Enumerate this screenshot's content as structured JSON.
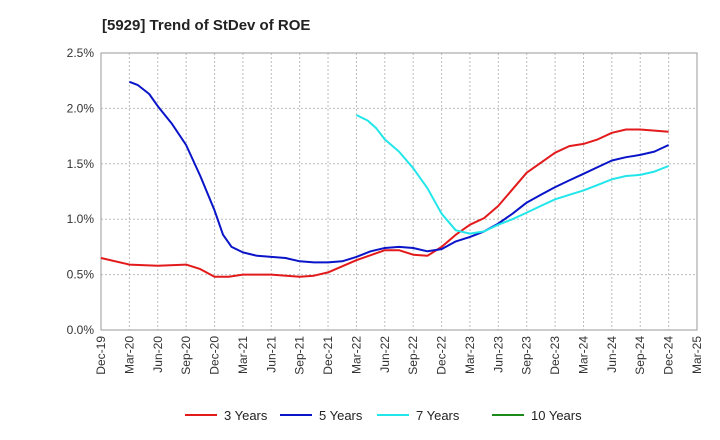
{
  "chart_data": {
    "type": "line",
    "title": "[5929]  Trend of StDev of ROE",
    "x_ticks": [
      "Dec-19",
      "Mar-20",
      "Jun-20",
      "Sep-20",
      "Dec-20",
      "Mar-21",
      "Jun-21",
      "Sep-21",
      "Dec-21",
      "Mar-22",
      "Jun-22",
      "Sep-22",
      "Dec-22",
      "Mar-23",
      "Jun-23",
      "Sep-23",
      "Dec-23",
      "Mar-24",
      "Jun-24",
      "Sep-24",
      "Dec-24",
      "Mar-25"
    ],
    "y_ticks": [
      "0.0%",
      "0.5%",
      "1.0%",
      "1.5%",
      "2.0%",
      "2.5%"
    ],
    "ylim": [
      0,
      2.5
    ],
    "grid": true,
    "legend_position": "bottom",
    "series": [
      {
        "name": "3 Years",
        "color": "#e31a1c",
        "points": [
          [
            0,
            0.65
          ],
          [
            1,
            0.59
          ],
          [
            2,
            0.58
          ],
          [
            3,
            0.59
          ],
          [
            3.5,
            0.55
          ],
          [
            4,
            0.48
          ],
          [
            4.5,
            0.48
          ],
          [
            5,
            0.5
          ],
          [
            6,
            0.5
          ],
          [
            7,
            0.48
          ],
          [
            7.5,
            0.49
          ],
          [
            8,
            0.52
          ],
          [
            9,
            0.63
          ],
          [
            10,
            0.72
          ],
          [
            10.5,
            0.72
          ],
          [
            11,
            0.68
          ],
          [
            11.5,
            0.67
          ],
          [
            12,
            0.75
          ],
          [
            12.5,
            0.86
          ],
          [
            13,
            0.95
          ],
          [
            13.5,
            1.01
          ],
          [
            14,
            1.12
          ],
          [
            14.5,
            1.27
          ],
          [
            15,
            1.42
          ],
          [
            15.5,
            1.51
          ],
          [
            16,
            1.6
          ],
          [
            16.5,
            1.66
          ],
          [
            17,
            1.68
          ],
          [
            17.5,
            1.72
          ],
          [
            18,
            1.78
          ],
          [
            18.5,
            1.81
          ],
          [
            19,
            1.81
          ],
          [
            19.5,
            1.8
          ],
          [
            20,
            1.79
          ]
        ]
      },
      {
        "name": "5 Years",
        "color": "#0a14c8",
        "points": [
          [
            1,
            2.24
          ],
          [
            1.3,
            2.21
          ],
          [
            1.7,
            2.13
          ],
          [
            2,
            2.02
          ],
          [
            2.5,
            1.86
          ],
          [
            3,
            1.67
          ],
          [
            3.5,
            1.39
          ],
          [
            4,
            1.08
          ],
          [
            4.3,
            0.86
          ],
          [
            4.6,
            0.75
          ],
          [
            5,
            0.7
          ],
          [
            5.5,
            0.67
          ],
          [
            6,
            0.66
          ],
          [
            6.5,
            0.65
          ],
          [
            7,
            0.62
          ],
          [
            7.5,
            0.61
          ],
          [
            8,
            0.61
          ],
          [
            8.5,
            0.62
          ],
          [
            9,
            0.66
          ],
          [
            9.5,
            0.71
          ],
          [
            10,
            0.74
          ],
          [
            10.5,
            0.75
          ],
          [
            11,
            0.74
          ],
          [
            11.5,
            0.71
          ],
          [
            12,
            0.73
          ],
          [
            12.5,
            0.8
          ],
          [
            13,
            0.84
          ],
          [
            13.5,
            0.89
          ],
          [
            14,
            0.96
          ],
          [
            14.5,
            1.05
          ],
          [
            15,
            1.15
          ],
          [
            15.5,
            1.22
          ],
          [
            16,
            1.29
          ],
          [
            16.5,
            1.35
          ],
          [
            17,
            1.41
          ],
          [
            17.5,
            1.47
          ],
          [
            18,
            1.53
          ],
          [
            18.5,
            1.56
          ],
          [
            19,
            1.58
          ],
          [
            19.5,
            1.61
          ],
          [
            20,
            1.67
          ]
        ]
      },
      {
        "name": "7 Years",
        "color": "#22e6ea",
        "points": [
          [
            9,
            1.94
          ],
          [
            9.4,
            1.89
          ],
          [
            9.7,
            1.82
          ],
          [
            10,
            1.72
          ],
          [
            10.5,
            1.61
          ],
          [
            11,
            1.46
          ],
          [
            11.5,
            1.28
          ],
          [
            12,
            1.05
          ],
          [
            12.5,
            0.9
          ],
          [
            13,
            0.87
          ],
          [
            13.5,
            0.89
          ],
          [
            14,
            0.95
          ],
          [
            14.5,
            1.0
          ],
          [
            15,
            1.06
          ],
          [
            15.5,
            1.12
          ],
          [
            16,
            1.18
          ],
          [
            16.5,
            1.22
          ],
          [
            17,
            1.26
          ],
          [
            17.5,
            1.31
          ],
          [
            18,
            1.36
          ],
          [
            18.5,
            1.39
          ],
          [
            19,
            1.4
          ],
          [
            19.5,
            1.43
          ],
          [
            20,
            1.48
          ]
        ]
      },
      {
        "name": "10 Years",
        "color": "#1a8a1a",
        "points": []
      }
    ]
  }
}
